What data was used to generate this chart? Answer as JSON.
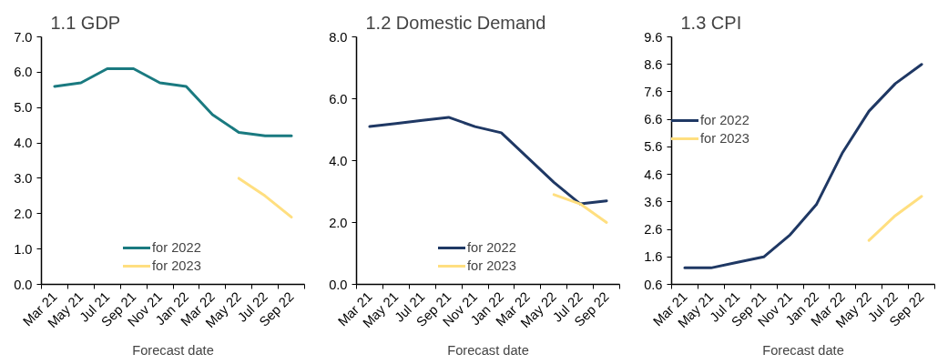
{
  "chart_data": [
    {
      "type": "line",
      "title": "1.1 GDP",
      "xlabel": "Forecast date",
      "categories": [
        "Mar 21",
        "May 21",
        "Jul 21",
        "Sep 21",
        "Nov 21",
        "Jan 22",
        "Mar 22",
        "May 22",
        "Jul 22",
        "Sep 22"
      ],
      "ylim": [
        0,
        7
      ],
      "yticks": [
        {
          "value": 0,
          "label": "0.0"
        },
        {
          "value": 1,
          "label": "1.0"
        },
        {
          "value": 2,
          "label": "2.0"
        },
        {
          "value": 3,
          "label": "3.0"
        },
        {
          "value": 4,
          "label": "4.0"
        },
        {
          "value": 5,
          "label": "5.0"
        },
        {
          "value": 6,
          "label": "6.0"
        },
        {
          "value": 7,
          "label": "7.0"
        }
      ],
      "grid": false,
      "legend": "bottom",
      "series": [
        {
          "name": "for 2022",
          "color": "#1a7a80",
          "values": [
            5.6,
            5.7,
            6.1,
            6.1,
            5.7,
            5.6,
            4.8,
            4.3,
            4.2,
            4.2
          ]
        },
        {
          "name": "for 2023",
          "color": "#ffdf80",
          "values": [
            null,
            null,
            null,
            null,
            null,
            null,
            null,
            3.0,
            2.5,
            1.9
          ]
        }
      ]
    },
    {
      "type": "line",
      "title": "1.2 Domestic Demand",
      "xlabel": "Forecast date",
      "categories": [
        "Mar 21",
        "May 21",
        "Jul 21",
        "Sep 21",
        "Nov 21",
        "Jan 22",
        "Mar 22",
        "May 22",
        "Jul 22",
        "Sep 22"
      ],
      "ylim": [
        0,
        8
      ],
      "yticks": [
        {
          "value": 0,
          "label": "0.0"
        },
        {
          "value": 2,
          "label": "2.0"
        },
        {
          "value": 4,
          "label": "4.0"
        },
        {
          "value": 6,
          "label": "6.0"
        },
        {
          "value": 8,
          "label": "8.0"
        }
      ],
      "grid": false,
      "legend": "bottom",
      "series": [
        {
          "name": "for 2022",
          "color": "#1f3864",
          "values": [
            5.1,
            5.2,
            5.3,
            5.4,
            5.1,
            4.9,
            4.1,
            3.3,
            2.6,
            2.7
          ]
        },
        {
          "name": "for 2023",
          "color": "#ffdf80",
          "values": [
            null,
            null,
            null,
            null,
            null,
            null,
            null,
            2.9,
            2.6,
            2.0
          ]
        }
      ]
    },
    {
      "type": "line",
      "title": "1.3 CPI",
      "xlabel": "Forecast date",
      "categories": [
        "Mar 21",
        "May 21",
        "Jul 21",
        "Sep 21",
        "Nov 21",
        "Jan 22",
        "Mar 22",
        "May 22",
        "Jul 22",
        "Sep 22"
      ],
      "ylim": [
        0.6,
        9.6
      ],
      "yticks": [
        0.6,
        1.6,
        2.6,
        3.6,
        4.6,
        5.6,
        6.6,
        7.6,
        8.6,
        9.6
      ],
      "grid": false,
      "legend": "left",
      "series": [
        {
          "name": "for 2022",
          "color": "#1f3864",
          "values": [
            1.2,
            1.2,
            1.4,
            1.6,
            2.4,
            3.5,
            5.4,
            6.9,
            7.9,
            8.6
          ]
        },
        {
          "name": "for 2023",
          "color": "#ffdf80",
          "values": [
            null,
            null,
            null,
            null,
            null,
            null,
            null,
            2.2,
            3.1,
            3.8
          ]
        }
      ]
    }
  ]
}
